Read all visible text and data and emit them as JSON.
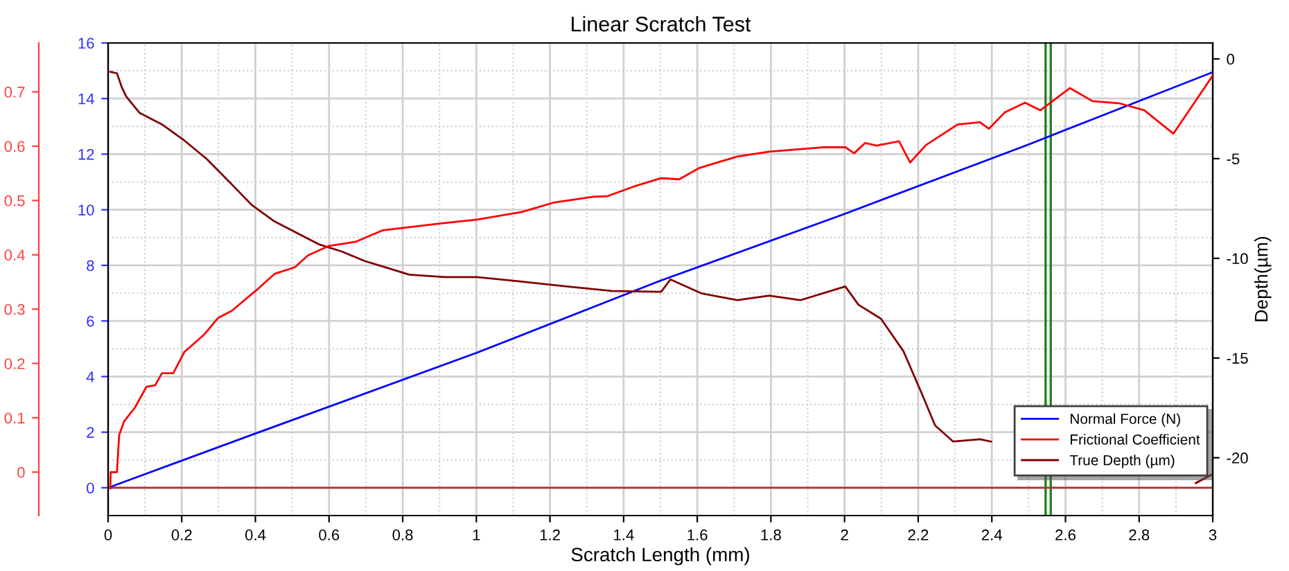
{
  "chart_data": {
    "type": "line",
    "title": "Linear Scratch Test",
    "xlabel": "Scratch Length (mm)",
    "y2label": "Depth(µm)",
    "xlim": [
      0,
      3
    ],
    "xticks": [
      0,
      0.2,
      0.4,
      0.6,
      0.8,
      1,
      1.2,
      1.4,
      1.6,
      1.8,
      2,
      2.2,
      2.4,
      2.6,
      2.8,
      3
    ],
    "ylim": [
      -1,
      16
    ],
    "yticks": [
      0,
      2,
      4,
      6,
      8,
      10,
      12,
      14,
      16
    ],
    "y2lim": [
      -22.9,
      0.8
    ],
    "y2ticks": [
      0,
      -5,
      -10,
      -15,
      -20
    ],
    "y3lim": [
      -0.08,
      0.79
    ],
    "y3ticks": [
      0,
      0.1,
      0.2,
      0.3,
      0.4,
      0.5,
      0.6,
      0.7
    ],
    "grid": true,
    "legend": "bottom right",
    "ref_lines": [
      {
        "axis": "x",
        "value": 2.546,
        "color": "#208020"
      },
      {
        "axis": "x",
        "value": 2.56,
        "color": "#208020"
      }
    ],
    "series": [
      {
        "name": "Normal Force (N)",
        "color": "#0000ff",
        "axis": "y",
        "x": [
          0,
          0.4,
          1,
          1.5,
          2,
          2.5,
          3
        ],
        "values": [
          0,
          1.95,
          4.85,
          7.45,
          9.85,
          12.35,
          14.95
        ]
      },
      {
        "name": "Frictional Coefficient",
        "color": "#ff0000",
        "axis": "y3",
        "x": [
          0.006,
          0.007,
          0.024,
          0.03,
          0.043,
          0.073,
          0.104,
          0.128,
          0.146,
          0.177,
          0.207,
          0.262,
          0.299,
          0.336,
          0.403,
          0.452,
          0.507,
          0.543,
          0.598,
          0.672,
          0.745,
          0.904,
          1.002,
          1.124,
          1.209,
          1.319,
          1.356,
          1.429,
          1.502,
          1.551,
          1.606,
          1.709,
          1.795,
          1.941,
          2.002,
          2.026,
          2.056,
          2.087,
          2.148,
          2.178,
          2.221,
          2.307,
          2.368,
          2.392,
          2.435,
          2.49,
          2.532,
          2.612,
          2.673,
          2.746,
          2.814,
          2.893,
          3.0
        ],
        "values": [
          -0.03,
          0.0,
          0.0,
          0.068,
          0.093,
          0.119,
          0.157,
          0.16,
          0.182,
          0.182,
          0.221,
          0.254,
          0.284,
          0.297,
          0.335,
          0.365,
          0.377,
          0.399,
          0.416,
          0.424,
          0.445,
          0.458,
          0.465,
          0.479,
          0.496,
          0.507,
          0.508,
          0.526,
          0.541,
          0.539,
          0.56,
          0.581,
          0.59,
          0.598,
          0.598,
          0.587,
          0.606,
          0.601,
          0.609,
          0.57,
          0.602,
          0.64,
          0.644,
          0.632,
          0.662,
          0.68,
          0.666,
          0.707,
          0.683,
          0.679,
          0.666,
          0.623,
          0.73
        ]
      },
      {
        "name": "True Depth (µm)",
        "color": "#800000",
        "axis": "y2",
        "x": [
          0.006,
          0.024,
          0.037,
          0.049,
          0.085,
          0.146,
          0.207,
          0.268,
          0.33,
          0.391,
          0.452,
          0.513,
          0.574,
          0.635,
          0.696,
          0.757,
          0.818,
          0.916,
          1.002,
          1.124,
          1.246,
          1.368,
          1.502,
          1.527,
          1.612,
          1.709,
          1.795,
          1.88,
          2.002,
          2.038,
          2.099,
          2.16,
          2.209,
          2.246,
          2.295,
          2.368,
          2.398,
          2.6,
          2.954,
          3.0
        ],
        "values": [
          -0.65,
          -0.72,
          -1.41,
          -1.88,
          -2.7,
          -3.28,
          -4.09,
          -5.02,
          -6.18,
          -7.34,
          -8.15,
          -8.73,
          -9.31,
          -9.66,
          -10.13,
          -10.47,
          -10.82,
          -10.94,
          -10.94,
          -11.17,
          -11.41,
          -11.64,
          -11.68,
          -11.06,
          -11.76,
          -12.1,
          -11.87,
          -12.1,
          -11.41,
          -12.33,
          -13.03,
          -14.66,
          -16.75,
          -18.38,
          -19.19,
          -19.07,
          -19.19,
          null,
          -21.27,
          -20.82
        ]
      },
      {
        "color": "#b03030",
        "axis": "y",
        "x": [
          0,
          3
        ],
        "values": [
          0,
          0
        ]
      }
    ]
  }
}
